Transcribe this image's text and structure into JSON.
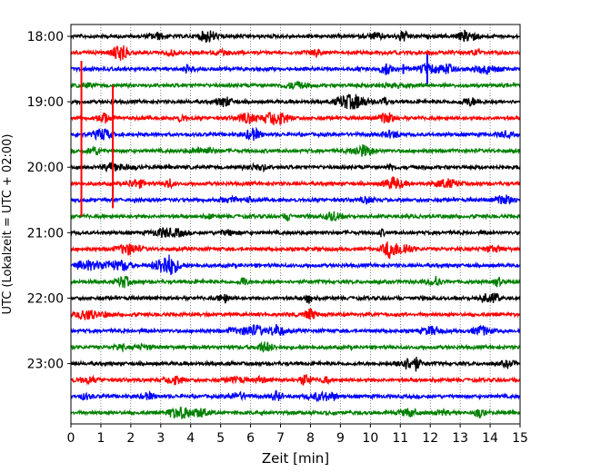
{
  "chart_data": {
    "type": "line",
    "title": "",
    "xlabel": "Zeit  [min]",
    "ylabel": "UTC (Lokalzeit = UTC + 02:00)",
    "xlim": [
      0,
      15
    ],
    "x_ticks": [
      0,
      1,
      2,
      3,
      4,
      5,
      6,
      7,
      8,
      9,
      10,
      11,
      12,
      13,
      14,
      15
    ],
    "x_tick_labels": [
      "0",
      "1",
      "2",
      "3",
      "4",
      "5",
      "6",
      "7",
      "8",
      "9",
      "10",
      "11",
      "12",
      "13",
      "14",
      "15"
    ],
    "grid": "vertical dotted",
    "y_tick_labels": [
      "18:00",
      "19:00",
      "20:00",
      "21:00",
      "22:00",
      "23:00"
    ],
    "trace_colors": [
      "#000000",
      "#ff0000",
      "#0000ff",
      "#008000"
    ],
    "trace_interval_minutes": 15,
    "start_time": "18:00",
    "trace_count": 24,
    "events": [
      {
        "time_min": 0.35,
        "trace_index": 5,
        "color": "#ff0000",
        "extent_traces": [
          -3.5,
          6
        ]
      },
      {
        "time_min": 1.4,
        "trace_index": 9,
        "color": "#ff0000",
        "extent_traces": [
          -6,
          1.5
        ]
      },
      {
        "time_min": 11.9,
        "trace_index": 2,
        "color": "#0000ff",
        "extent_traces": [
          -0.9,
          0.9
        ]
      },
      {
        "time_min": 11.1,
        "trace_index": 2,
        "color": "#0000ff",
        "extent_traces": [
          -0.3,
          0.3
        ]
      }
    ]
  }
}
